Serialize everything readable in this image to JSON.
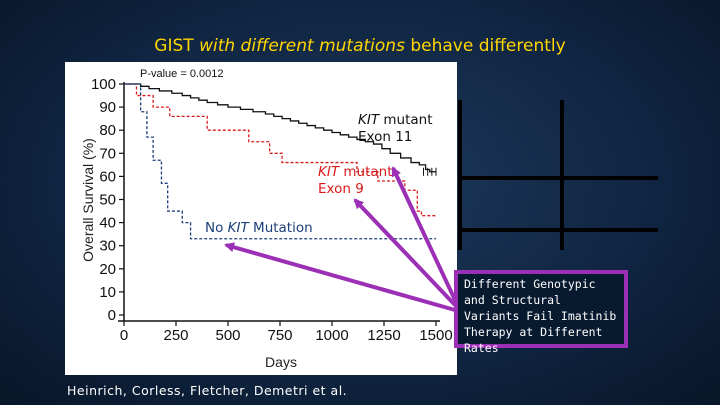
{
  "slide": {
    "title_part1": "GIST ",
    "title_italic": "with different mutations",
    "title_part2": " behave differently",
    "citation": "Heinrich, Corless, Fletcher, Demetri et al.",
    "callout_text": "Different Genotypic and Structural Variants Fail Imatinib Therapy at Different Rates"
  },
  "colors": {
    "title": "#ffd600",
    "kit_exon11": "#111111",
    "kit_exon9": "#d81a1a",
    "no_kit": "#1c3f7a",
    "arrow": "#9b2fb5"
  },
  "chart_data": {
    "type": "line",
    "subtype": "kaplan-meier",
    "p_value": "P-value = 0.0012",
    "xlabel": "Days",
    "ylabel": "Overall Survival (%)",
    "xlim": [
      0,
      1500
    ],
    "ylim": [
      0,
      100
    ],
    "x_ticks": [
      "0",
      "250",
      "500",
      "750",
      "1000",
      "1250",
      "1500"
    ],
    "y_ticks": [
      "0",
      "10",
      "20",
      "30",
      "40",
      "50",
      "60",
      "70",
      "80",
      "90",
      "100"
    ],
    "series": [
      {
        "name": "KIT mutant Exon 11",
        "label_italic": "KIT",
        "label_rest": " mutant",
        "label_line2": "Exon 11",
        "color": "#111111",
        "dashed": false,
        "points": [
          [
            0,
            100
          ],
          [
            60,
            100
          ],
          [
            80,
            99
          ],
          [
            120,
            98
          ],
          [
            170,
            97
          ],
          [
            230,
            96
          ],
          [
            280,
            95
          ],
          [
            320,
            94
          ],
          [
            360,
            93
          ],
          [
            400,
            92
          ],
          [
            450,
            91
          ],
          [
            500,
            90
          ],
          [
            560,
            89
          ],
          [
            620,
            88
          ],
          [
            680,
            87
          ],
          [
            720,
            86
          ],
          [
            760,
            85
          ],
          [
            800,
            84
          ],
          [
            840,
            83
          ],
          [
            880,
            82
          ],
          [
            920,
            81
          ],
          [
            960,
            80
          ],
          [
            1000,
            79
          ],
          [
            1040,
            78
          ],
          [
            1080,
            77
          ],
          [
            1120,
            76
          ],
          [
            1160,
            75
          ],
          [
            1200,
            74
          ],
          [
            1240,
            72
          ],
          [
            1280,
            70
          ],
          [
            1330,
            68
          ],
          [
            1380,
            66
          ],
          [
            1420,
            65
          ],
          [
            1450,
            63
          ],
          [
            1470,
            62
          ],
          [
            1500,
            62
          ]
        ]
      },
      {
        "name": "KIT mutant Exon 9",
        "label_italic": "KIT",
        "label_rest": " mutant",
        "label_line2": "Exon 9",
        "color": "#d81a1a",
        "dashed": true,
        "points": [
          [
            0,
            100
          ],
          [
            40,
            100
          ],
          [
            60,
            95
          ],
          [
            120,
            95
          ],
          [
            140,
            90
          ],
          [
            200,
            90
          ],
          [
            220,
            86
          ],
          [
            380,
            86
          ],
          [
            400,
            80
          ],
          [
            580,
            80
          ],
          [
            600,
            75
          ],
          [
            680,
            75
          ],
          [
            700,
            70
          ],
          [
            740,
            70
          ],
          [
            760,
            66
          ],
          [
            1100,
            66
          ],
          [
            1120,
            62
          ],
          [
            1200,
            62
          ],
          [
            1220,
            58
          ],
          [
            1330,
            58
          ],
          [
            1350,
            54
          ],
          [
            1390,
            54
          ],
          [
            1410,
            45
          ],
          [
            1430,
            43
          ],
          [
            1500,
            43
          ]
        ]
      },
      {
        "name": "No KIT Mutation",
        "label_pre": "No ",
        "label_italic": "KIT",
        "label_rest": " Mutation",
        "color": "#1c3f7a",
        "dashed": true,
        "points": [
          [
            0,
            100
          ],
          [
            70,
            100
          ],
          [
            80,
            88
          ],
          [
            100,
            88
          ],
          [
            110,
            77
          ],
          [
            130,
            77
          ],
          [
            140,
            67
          ],
          [
            170,
            67
          ],
          [
            180,
            57
          ],
          [
            200,
            57
          ],
          [
            210,
            45
          ],
          [
            270,
            45
          ],
          [
            280,
            40
          ],
          [
            310,
            40
          ],
          [
            320,
            33
          ],
          [
            1500,
            33
          ]
        ]
      }
    ]
  }
}
